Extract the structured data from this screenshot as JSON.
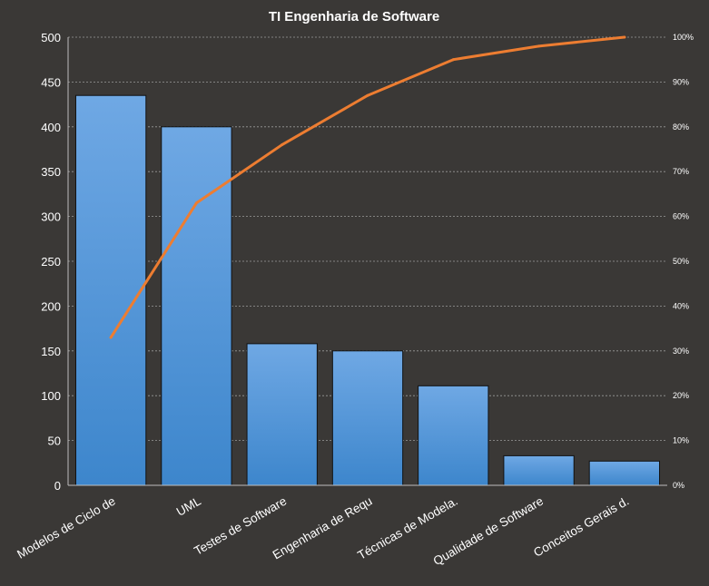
{
  "chart_data": {
    "type": "bar",
    "title": "TI Engenharia de Software",
    "categories": [
      "Modelos de Ciclo de",
      "UML",
      "Testes de Software",
      "Engenharia de Requ",
      "Técnicas de Modela.",
      "Qualidade de Software",
      "Conceitos Gerais d."
    ],
    "series": [
      {
        "type": "bar",
        "values": [
          435,
          400,
          158,
          150,
          111,
          33,
          27
        ]
      },
      {
        "type": "line",
        "axis": "right",
        "values": [
          33,
          63,
          76,
          87,
          95,
          98,
          100
        ]
      }
    ],
    "ylim": [
      0,
      500
    ],
    "yticks": [
      0,
      50,
      100,
      150,
      200,
      250,
      300,
      350,
      400,
      450,
      500
    ],
    "y2lim": [
      0,
      100
    ],
    "y2ticks": [
      "0%",
      "10%",
      "20%",
      "30%",
      "40%",
      "50%",
      "60%",
      "70%",
      "80%",
      "90%",
      "100%"
    ],
    "grid": true,
    "legend": "none",
    "colors": {
      "background": "#3a3836",
      "bar_top": "#6fa8e4",
      "bar_bottom": "#3d86cc",
      "line": "#ed7d31",
      "grid": "#9a9a9a",
      "text": "#ffffff"
    }
  }
}
